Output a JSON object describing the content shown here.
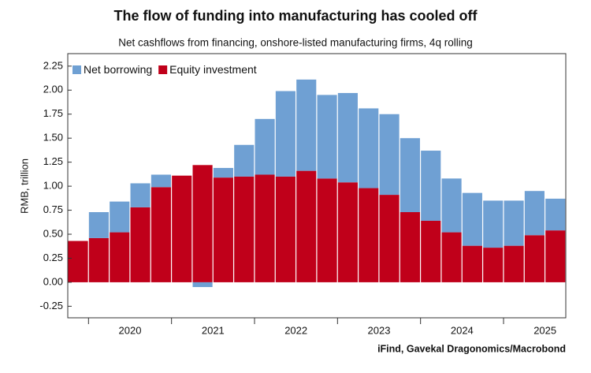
{
  "chart_data": {
    "type": "stacked_bar",
    "title": "The flow of funding into manufacturing has cooled off",
    "subtitle": "Net cashflows from financing, onshore-listed manufacturing firms, 4q rolling",
    "y_label": "RMB, trillion",
    "source": "iFind, Gavekal Dragonomics/Macrobond",
    "categories": [
      null,
      null,
      null,
      null,
      null,
      null,
      null,
      null,
      null,
      null,
      null,
      null,
      null,
      null,
      null,
      null,
      null,
      null,
      null,
      null,
      null,
      null,
      null,
      null
    ],
    "year_labels": [
      "2020",
      "2021",
      "2022",
      "2023",
      "2024",
      "2025"
    ],
    "series": [
      {
        "name": "Equity investment",
        "color": "#c0001a",
        "values": [
          0.43,
          0.46,
          0.52,
          0.78,
          0.99,
          1.11,
          1.22,
          1.09,
          1.1,
          1.12,
          1.1,
          1.16,
          1.08,
          1.04,
          0.98,
          0.91,
          0.73,
          0.64,
          0.52,
          0.38,
          0.36,
          0.38,
          0.49,
          0.54
        ]
      },
      {
        "name": "Net borrowing",
        "color": "#6fa0d3",
        "values": [
          0.0,
          0.27,
          0.32,
          0.25,
          0.13,
          0.0,
          -0.05,
          0.1,
          0.33,
          0.58,
          0.89,
          0.95,
          0.87,
          0.93,
          0.83,
          0.84,
          0.77,
          0.73,
          0.56,
          0.55,
          0.49,
          0.47,
          0.46,
          0.33
        ]
      }
    ],
    "legend_order": [
      1,
      0
    ],
    "legend": "top-left",
    "ylim": [
      -0.37,
      2.38
    ],
    "yticks": [
      -0.25,
      {
        "value": 0,
        "label": "0.00"
      },
      0.25,
      {
        "value": 0.5,
        "label": "0.50"
      },
      0.75,
      {
        "value": 1,
        "label": "1.00"
      },
      1.25,
      {
        "value": 1.5,
        "label": "1.50"
      },
      1.75,
      {
        "value": 2,
        "label": "2.00"
      },
      2.25
    ],
    "grid": false
  }
}
